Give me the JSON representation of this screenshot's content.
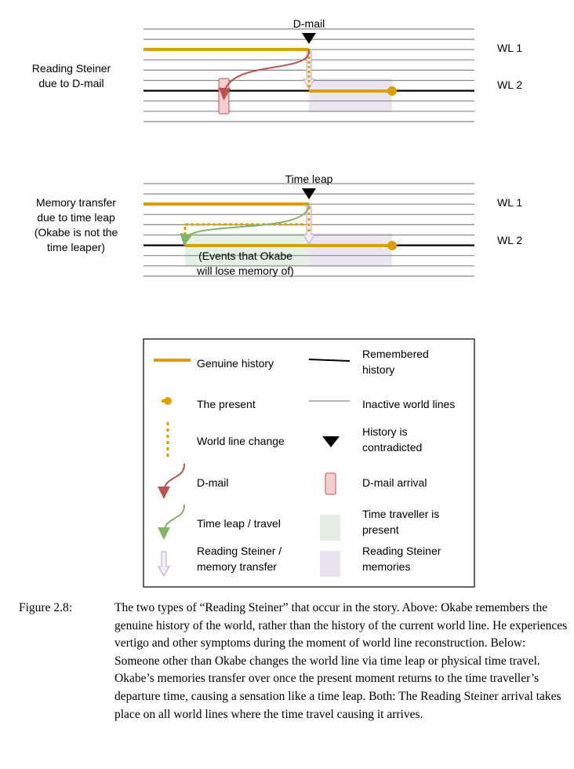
{
  "top": {
    "event": "D-mail",
    "left_label": [
      "Reading Steiner",
      "due to D-mail"
    ],
    "wl1": "WL 1",
    "wl2": "WL 2"
  },
  "bottom": {
    "event": "Time leap",
    "left_label": [
      "Memory transfer",
      "due to time leap",
      "(Okabe is not the",
      "time leaper)"
    ],
    "wl1": "WL 1",
    "wl2": "WL 2",
    "note": [
      "(Events that Okabe",
      "will lose memory of)"
    ]
  },
  "legend": [
    [
      "Genuine history"
    ],
    [
      "Remembered",
      "history"
    ],
    [
      "The present"
    ],
    [
      "Inactive world lines"
    ],
    [
      "World line change"
    ],
    [
      "History is",
      "contradicted"
    ],
    [
      "D-mail"
    ],
    [
      "D-mail arrival"
    ],
    [
      "Time leap / travel"
    ],
    [
      "Time traveller is",
      "present"
    ],
    [
      "Reading Steiner /",
      "memory transfer"
    ],
    [
      "Reading Steiner",
      "memories"
    ]
  ],
  "caption": {
    "label": "Figure 2.8:",
    "text": "The two types of “Reading Steiner” that occur in the story. Above: Okabe remembers the genuine history of the world, rather than the history of the current world line. He experiences vertigo and other symptoms during the moment of world line reconstruction. Below: Someone other than Okabe changes the world line via time leap or physical time travel. Okabe’s memories transfer over once the present moment returns to the time traveller’s departure time, causing a sensation like a time leap. Both: The Reading Steiner arrival takes place on all world lines where the time travel causing it arrives."
  },
  "colors": {
    "gold": "#dd9f00",
    "red": "#b85450",
    "green": "#82b366",
    "purple": "#e1d5e7",
    "pink": "#f8cecc",
    "greenbg": "#d5e8d4"
  }
}
